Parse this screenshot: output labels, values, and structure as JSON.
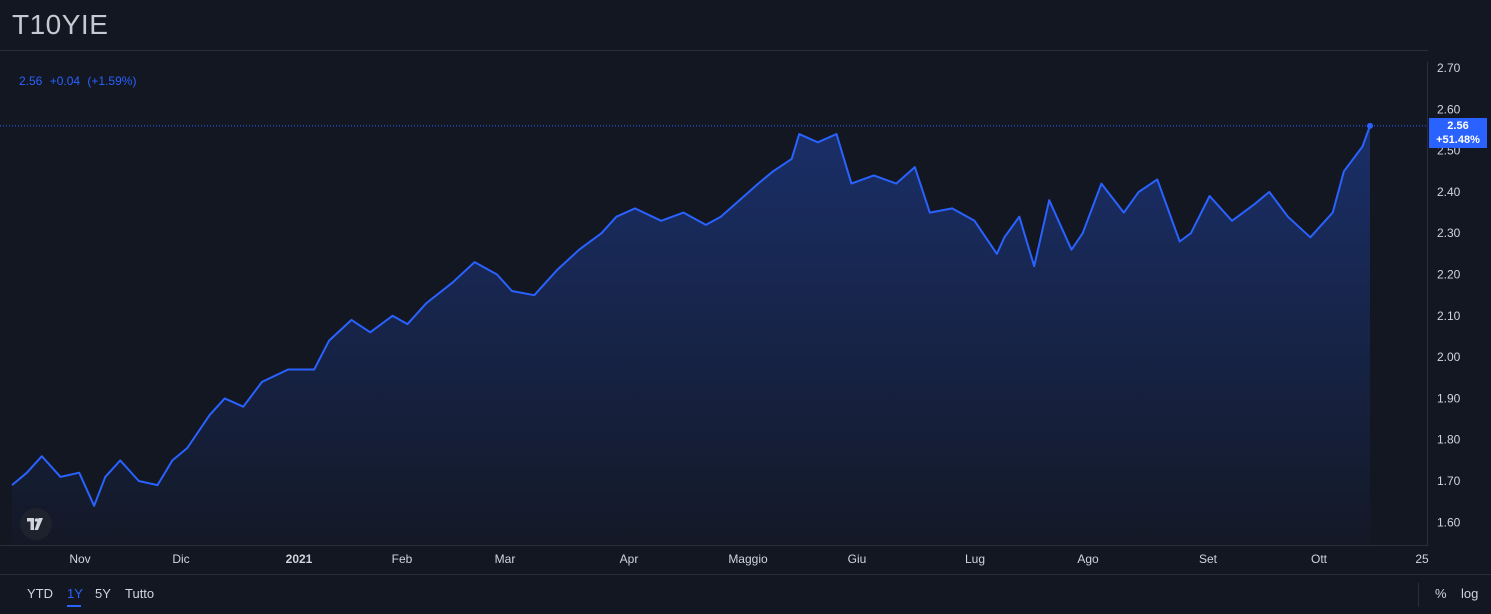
{
  "header": {
    "symbol": "T10YIE"
  },
  "legend": {
    "price": "2.56",
    "change": "+0.04",
    "change_pct": "(+1.59%)"
  },
  "price_label": {
    "value": "2.56",
    "change_pct": "+51.48%"
  },
  "colors": {
    "line": "#2962ff",
    "background": "#131722",
    "grid": "#2a2e39",
    "axis_text": "#d1d4dc"
  },
  "chart_data": {
    "type": "area",
    "title": "T10YIE",
    "x_tick_labels": [
      "Nov",
      "Dic",
      "2021",
      "Feb",
      "Mar",
      "Apr",
      "Maggio",
      "Giu",
      "Lug",
      "Ago",
      "Set",
      "Ott",
      "25"
    ],
    "y_tick_labels": [
      "2.70",
      "2.60",
      "2.50",
      "2.40",
      "2.30",
      "2.20",
      "2.10",
      "2.00",
      "1.90",
      "1.80",
      "1.70",
      "1.60"
    ],
    "ylim": [
      1.55,
      2.72
    ],
    "x_range": [
      "2020-10-15",
      "2021-10-22"
    ],
    "grid": false,
    "series": [
      {
        "name": "T10YIE",
        "dates": [
          "2020-10-15",
          "2020-10-19",
          "2020-10-23",
          "2020-10-28",
          "2020-11-02",
          "2020-11-06",
          "2020-11-09",
          "2020-11-13",
          "2020-11-18",
          "2020-11-23",
          "2020-11-27",
          "2020-12-01",
          "2020-12-07",
          "2020-12-11",
          "2020-12-16",
          "2020-12-21",
          "2020-12-28",
          "2021-01-04",
          "2021-01-08",
          "2021-01-14",
          "2021-01-19",
          "2021-01-25",
          "2021-01-29",
          "2021-02-03",
          "2021-02-10",
          "2021-02-16",
          "2021-02-22",
          "2021-02-26",
          "2021-03-04",
          "2021-03-10",
          "2021-03-16",
          "2021-03-22",
          "2021-03-26",
          "2021-03-31",
          "2021-04-07",
          "2021-04-13",
          "2021-04-19",
          "2021-04-23",
          "2021-04-28",
          "2021-05-03",
          "2021-05-07",
          "2021-05-12",
          "2021-05-14",
          "2021-05-19",
          "2021-05-24",
          "2021-05-28",
          "2021-06-03",
          "2021-06-09",
          "2021-06-14",
          "2021-06-18",
          "2021-06-24",
          "2021-06-30",
          "2021-07-06",
          "2021-07-08",
          "2021-07-12",
          "2021-07-16",
          "2021-07-20",
          "2021-07-26",
          "2021-07-29",
          "2021-08-03",
          "2021-08-09",
          "2021-08-13",
          "2021-08-18",
          "2021-08-24",
          "2021-08-27",
          "2021-09-01",
          "2021-09-07",
          "2021-09-13",
          "2021-09-17",
          "2021-09-22",
          "2021-09-28",
          "2021-10-04",
          "2021-10-07",
          "2021-10-12",
          "2021-10-14"
        ],
        "values": [
          1.69,
          1.72,
          1.76,
          1.71,
          1.72,
          1.64,
          1.71,
          1.75,
          1.7,
          1.69,
          1.75,
          1.78,
          1.86,
          1.9,
          1.88,
          1.94,
          1.97,
          1.97,
          2.04,
          2.09,
          2.06,
          2.1,
          2.08,
          2.13,
          2.18,
          2.23,
          2.2,
          2.16,
          2.15,
          2.21,
          2.26,
          2.3,
          2.34,
          2.36,
          2.33,
          2.35,
          2.32,
          2.34,
          2.38,
          2.42,
          2.45,
          2.48,
          2.54,
          2.52,
          2.54,
          2.42,
          2.44,
          2.42,
          2.46,
          2.35,
          2.36,
          2.33,
          2.25,
          2.29,
          2.34,
          2.22,
          2.38,
          2.26,
          2.3,
          2.42,
          2.35,
          2.4,
          2.43,
          2.28,
          2.3,
          2.39,
          2.33,
          2.37,
          2.4,
          2.34,
          2.29,
          2.35,
          2.45,
          2.51,
          2.56
        ]
      }
    ]
  },
  "range_buttons": [
    "YTD",
    "1Y",
    "5Y",
    "Tutto"
  ],
  "active_range": "1Y",
  "scale_buttons": {
    "percent": "%",
    "log": "log"
  }
}
